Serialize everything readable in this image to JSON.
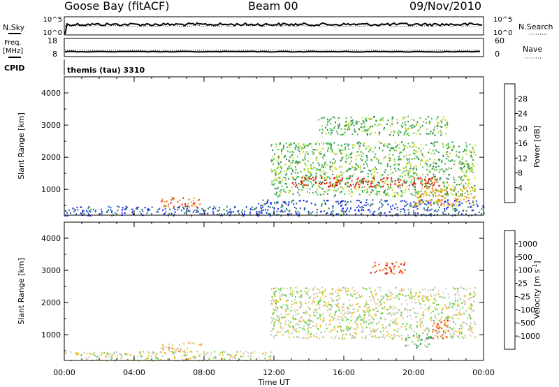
{
  "header": {
    "station": "Goose Bay (fitACF)",
    "beam": "Beam 00",
    "date": "09/Nov/2010"
  },
  "top_panels": {
    "noise": {
      "left_label": "N.Sky",
      "right_label": "N.Search",
      "left_ticks": [
        "10^5",
        "10^0"
      ],
      "right_ticks": [
        "10^5",
        "10^0"
      ]
    },
    "freq": {
      "left_label_1": "Freq.",
      "left_label_2": "[MHz]",
      "right_label": "Nave",
      "left_ticks": [
        "18",
        "8"
      ],
      "right_ticks": [
        "60",
        "0"
      ]
    },
    "cpid": {
      "label": "CPID",
      "value": "themis (tau) 3310"
    }
  },
  "chart_data": [
    {
      "type": "heatmap",
      "name": "power",
      "ylabel": "Slant Range [km]",
      "ylim": [
        200,
        4500
      ],
      "yticks": [
        "1000",
        "2000",
        "3000",
        "4000"
      ],
      "xlim": [
        0,
        24
      ],
      "colorbar_label": "Power [dB]",
      "colorbar_ticks": [
        "4",
        "8",
        "12",
        "16",
        "20",
        "24",
        "28"
      ],
      "colors": [
        "#1a1aff",
        "#2e5cb8",
        "#2e8b57",
        "#4fbf4f",
        "#c8d820",
        "#f0a020",
        "#f06010",
        "#e01010"
      ],
      "scatter_regions": [
        {
          "t": [
            0.0,
            12.0
          ],
          "r": [
            200,
            500
          ],
          "level": 1
        },
        {
          "t": [
            5.5,
            7.8
          ],
          "r": [
            480,
            780
          ],
          "level": 6
        },
        {
          "t": [
            11.0,
            24.0
          ],
          "r": [
            200,
            700
          ],
          "level": 1
        },
        {
          "t": [
            11.8,
            23.5
          ],
          "r": [
            800,
            2500
          ],
          "level": 3
        },
        {
          "t": [
            13.0,
            21.5
          ],
          "r": [
            1100,
            1400
          ],
          "level": 7
        },
        {
          "t": [
            14.5,
            22.0
          ],
          "r": [
            2700,
            3300
          ],
          "level": 3
        },
        {
          "t": [
            20.0,
            23.5
          ],
          "r": [
            500,
            1100
          ],
          "level": 5
        }
      ]
    },
    {
      "type": "heatmap",
      "name": "velocity",
      "ylabel": "Slant Range [km]",
      "ylim": [
        200,
        4500
      ],
      "yticks": [
        "1000",
        "2000",
        "3000",
        "4000"
      ],
      "xlim": [
        0,
        24
      ],
      "xlabel": "Time UT",
      "xticks": [
        "00:00",
        "04:00",
        "08:00",
        "12:00",
        "16:00",
        "20:00",
        "00:00"
      ],
      "colorbar_label": "Velocity",
      "colorbar_unit": "[m s",
      "colorbar_unit_exp": "-1",
      "colorbar_unit_close": "]",
      "colorbar_ticks": [
        "1000",
        "500",
        "100",
        "25",
        "-25",
        "-100",
        "-500",
        "-1000"
      ],
      "colors": [
        "#2020c8",
        "#2e6db8",
        "#2e8b57",
        "#5fcf3f",
        "#c8c8c0",
        "#f0c020",
        "#f08020",
        "#f04010",
        "#e01010"
      ],
      "scatter_regions": [
        {
          "t": [
            0.0,
            12.0
          ],
          "r": [
            200,
            500
          ],
          "level": 4
        },
        {
          "t": [
            5.5,
            7.8
          ],
          "r": [
            480,
            780
          ],
          "level": 5
        },
        {
          "t": [
            11.8,
            23.5
          ],
          "r": [
            900,
            2500
          ],
          "level": 4
        },
        {
          "t": [
            17.5,
            19.5
          ],
          "r": [
            2900,
            3300
          ],
          "level": 7
        },
        {
          "t": [
            21.0,
            22.0
          ],
          "r": [
            900,
            1500
          ],
          "level": 7
        },
        {
          "t": [
            19.5,
            21.0
          ],
          "r": [
            600,
            1000
          ],
          "level": 3
        }
      ]
    }
  ]
}
